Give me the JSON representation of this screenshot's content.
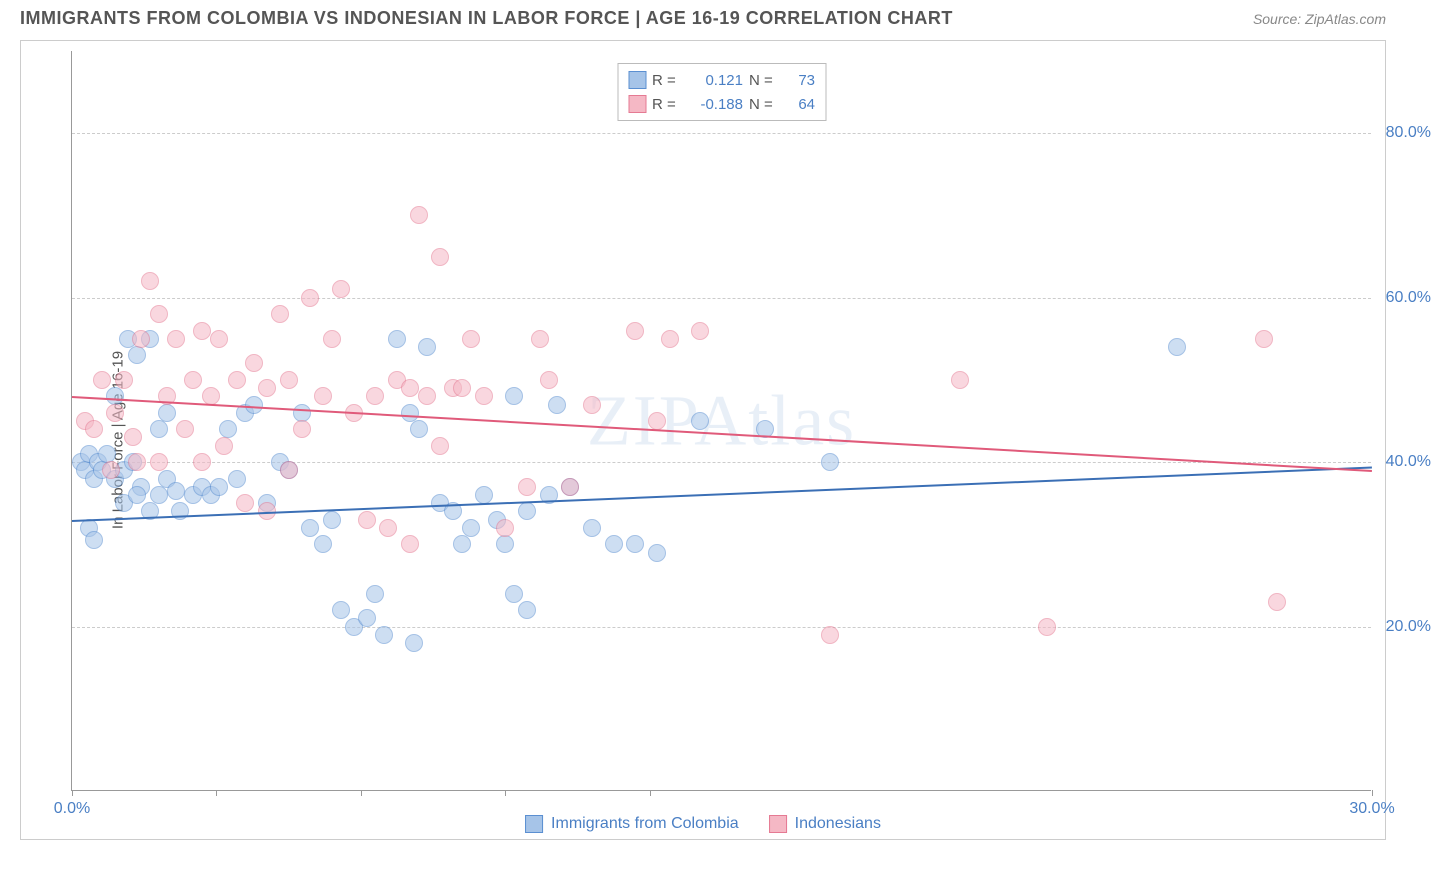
{
  "header": {
    "title": "IMMIGRANTS FROM COLOMBIA VS INDONESIAN IN LABOR FORCE | AGE 16-19 CORRELATION CHART",
    "source": "Source: ZipAtlas.com"
  },
  "chart": {
    "type": "scatter",
    "ylabel": "In Labor Force | Age 16-19",
    "watermark": "ZIPAtlas",
    "xlim": [
      0,
      30
    ],
    "ylim": [
      0,
      90
    ],
    "background_color": "#ffffff",
    "grid_color": "#cccccc",
    "axis_color": "#999999",
    "tick_label_color": "#4a7fc4",
    "tick_label_fontsize": 16,
    "yticks": [
      20,
      40,
      60,
      80
    ],
    "ytick_labels": [
      "20.0%",
      "40.0%",
      "60.0%",
      "80.0%"
    ],
    "xticks": [
      0,
      3.33,
      6.66,
      10,
      13.33,
      30
    ],
    "xtick_labels": {
      "0": "0.0%",
      "30": "30.0%"
    },
    "marker_radius": 9,
    "marker_opacity": 0.55,
    "trend_line_width": 2
  },
  "legend_top": {
    "rows": [
      {
        "swatch_fill": "#a6c4e8",
        "swatch_border": "#5b8fd1",
        "r_label": "R =",
        "r_val": "0.121",
        "n_label": "N =",
        "n_val": "73"
      },
      {
        "swatch_fill": "#f5b8c5",
        "swatch_border": "#e57a93",
        "r_label": "R =",
        "r_val": "-0.188",
        "n_label": "N =",
        "n_val": "64"
      }
    ]
  },
  "legend_bottom": {
    "items": [
      {
        "swatch_fill": "#a6c4e8",
        "swatch_border": "#5b8fd1",
        "label": "Immigrants from Colombia"
      },
      {
        "swatch_fill": "#f5b8c5",
        "swatch_border": "#e57a93",
        "label": "Indonesians"
      }
    ]
  },
  "series": [
    {
      "name": "colombia",
      "fill": "#a6c4e8",
      "border": "#5b8fd1",
      "trend": {
        "x1": 0,
        "y1": 33,
        "x2": 30,
        "y2": 39.5,
        "color": "#3b6fb5"
      },
      "points": [
        [
          0.2,
          40
        ],
        [
          0.3,
          39
        ],
        [
          0.4,
          41
        ],
        [
          0.5,
          38
        ],
        [
          0.6,
          40
        ],
        [
          0.7,
          39
        ],
        [
          0.8,
          41
        ],
        [
          0.4,
          32
        ],
        [
          1.0,
          38
        ],
        [
          1.2,
          39
        ],
        [
          1.4,
          40
        ],
        [
          1.6,
          37
        ],
        [
          1.2,
          35
        ],
        [
          1.5,
          36
        ],
        [
          1.8,
          34
        ],
        [
          2.0,
          36
        ],
        [
          2.2,
          38
        ],
        [
          2.4,
          36.5
        ],
        [
          1.0,
          48
        ],
        [
          1.3,
          55
        ],
        [
          1.5,
          53
        ],
        [
          1.8,
          55
        ],
        [
          2.0,
          44
        ],
        [
          2.2,
          46
        ],
        [
          2.5,
          34
        ],
        [
          2.8,
          36
        ],
        [
          3.0,
          37
        ],
        [
          3.2,
          36
        ],
        [
          3.4,
          37
        ],
        [
          3.6,
          44
        ],
        [
          3.8,
          38
        ],
        [
          4.0,
          46
        ],
        [
          4.2,
          47
        ],
        [
          4.5,
          35
        ],
        [
          4.8,
          40
        ],
        [
          5.0,
          39
        ],
        [
          5.3,
          46
        ],
        [
          5.5,
          32
        ],
        [
          5.8,
          30
        ],
        [
          6.0,
          33
        ],
        [
          6.2,
          22
        ],
        [
          6.5,
          20
        ],
        [
          6.8,
          21
        ],
        [
          7.0,
          24
        ],
        [
          7.2,
          19
        ],
        [
          7.5,
          55
        ],
        [
          7.8,
          46
        ],
        [
          7.9,
          18
        ],
        [
          8.0,
          44
        ],
        [
          8.2,
          54
        ],
        [
          8.5,
          35
        ],
        [
          8.8,
          34
        ],
        [
          9.0,
          30
        ],
        [
          9.2,
          32
        ],
        [
          9.5,
          36
        ],
        [
          9.8,
          33
        ],
        [
          10.0,
          30
        ],
        [
          10.2,
          24
        ],
        [
          10.5,
          22
        ],
        [
          10.2,
          48
        ],
        [
          10.5,
          34
        ],
        [
          11.0,
          36
        ],
        [
          11.5,
          37
        ],
        [
          12.0,
          32
        ],
        [
          12.5,
          30
        ],
        [
          13.0,
          30
        ],
        [
          13.5,
          29
        ],
        [
          11.2,
          47
        ],
        [
          14.5,
          45
        ],
        [
          16.0,
          44
        ],
        [
          17.5,
          40
        ],
        [
          25.5,
          54
        ],
        [
          0.5,
          30.5
        ]
      ]
    },
    {
      "name": "indonesia",
      "fill": "#f5b8c5",
      "border": "#e57a93",
      "trend": {
        "x1": 0,
        "y1": 48,
        "x2": 30,
        "y2": 39,
        "color": "#e05a7a"
      },
      "points": [
        [
          0.3,
          45
        ],
        [
          0.5,
          44
        ],
        [
          0.7,
          50
        ],
        [
          0.9,
          39
        ],
        [
          1.0,
          46
        ],
        [
          1.2,
          50
        ],
        [
          1.4,
          43
        ],
        [
          1.6,
          55
        ],
        [
          1.8,
          62
        ],
        [
          2.0,
          58
        ],
        [
          2.2,
          48
        ],
        [
          2.4,
          55
        ],
        [
          2.6,
          44
        ],
        [
          2.8,
          50
        ],
        [
          3.0,
          56
        ],
        [
          3.2,
          48
        ],
        [
          3.4,
          55
        ],
        [
          3.5,
          42
        ],
        [
          3.8,
          50
        ],
        [
          4.0,
          35
        ],
        [
          4.2,
          52
        ],
        [
          4.5,
          34
        ],
        [
          4.8,
          58
        ],
        [
          5.0,
          50
        ],
        [
          5.3,
          44
        ],
        [
          5.5,
          60
        ],
        [
          5.8,
          48
        ],
        [
          6.0,
          55
        ],
        [
          6.2,
          61
        ],
        [
          6.5,
          46
        ],
        [
          6.8,
          33
        ],
        [
          7.0,
          48
        ],
        [
          7.3,
          32
        ],
        [
          7.5,
          50
        ],
        [
          7.8,
          49
        ],
        [
          7.8,
          30
        ],
        [
          8.0,
          70
        ],
        [
          8.2,
          48
        ],
        [
          8.5,
          42
        ],
        [
          8.5,
          65
        ],
        [
          8.8,
          49
        ],
        [
          9.0,
          49
        ],
        [
          9.2,
          55
        ],
        [
          9.5,
          48
        ],
        [
          10.0,
          32
        ],
        [
          10.5,
          37
        ],
        [
          10.8,
          55
        ],
        [
          11.0,
          50
        ],
        [
          11.5,
          37
        ],
        [
          12.0,
          47
        ],
        [
          13.0,
          56
        ],
        [
          13.5,
          45
        ],
        [
          13.8,
          55
        ],
        [
          14.5,
          56
        ],
        [
          17.5,
          19
        ],
        [
          20.5,
          50
        ],
        [
          22.5,
          20
        ],
        [
          27.5,
          55
        ],
        [
          27.8,
          23
        ],
        [
          1.5,
          40
        ],
        [
          2.0,
          40
        ],
        [
          4.5,
          49
        ],
        [
          5.0,
          39
        ],
        [
          3.0,
          40
        ]
      ]
    }
  ]
}
